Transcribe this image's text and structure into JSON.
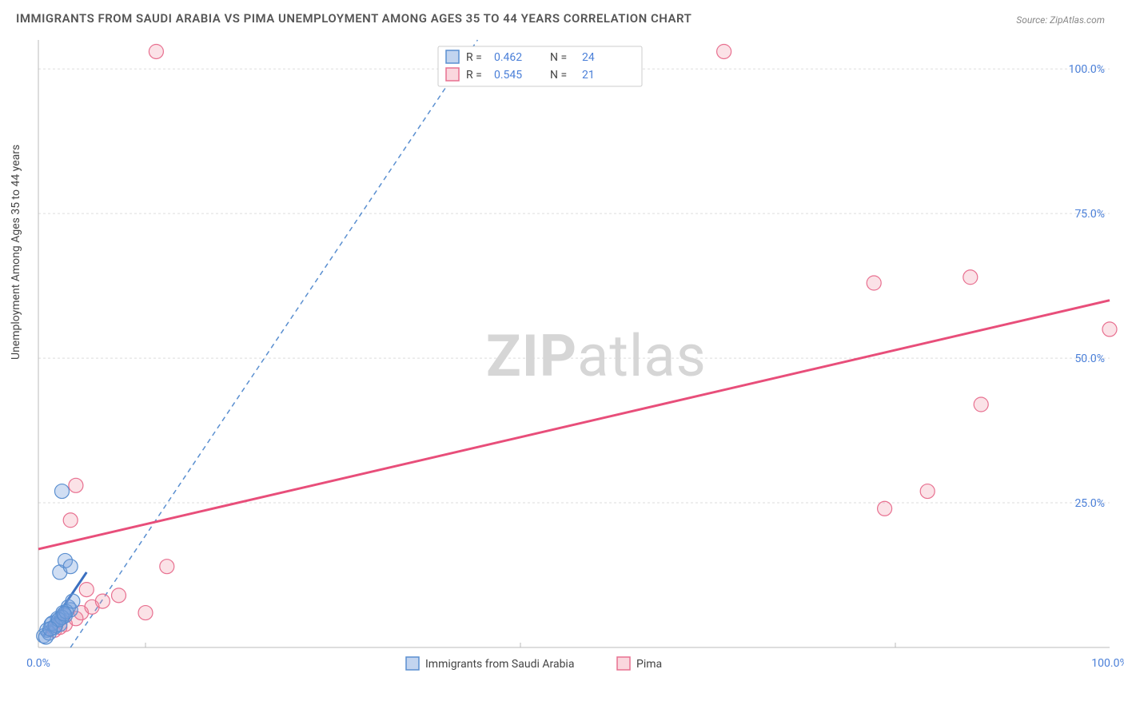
{
  "title": "IMMIGRANTS FROM SAUDI ARABIA VS PIMA UNEMPLOYMENT AMONG AGES 35 TO 44 YEARS CORRELATION CHART",
  "source": "Source: ZipAtlas.com",
  "y_axis_label": "Unemployment Among Ages 35 to 44 years",
  "watermark_bold": "ZIP",
  "watermark_rest": "atlas",
  "chart": {
    "type": "scatter",
    "xlim": [
      0,
      100
    ],
    "ylim": [
      0,
      105
    ],
    "y_ticks": [
      25.0,
      50.0,
      75.0,
      100.0
    ],
    "y_tick_labels": [
      "25.0%",
      "50.0%",
      "75.0%",
      "100.0%"
    ],
    "x_ticks": [
      0.0,
      100.0
    ],
    "x_tick_labels": [
      "0.0%",
      "100.0%"
    ],
    "grid_color": "#dddddd",
    "background_color": "#ffffff",
    "marker_radius": 9,
    "series": [
      {
        "name": "Immigrants from Saudi Arabia",
        "color_fill": "rgba(120,160,220,0.35)",
        "color_stroke": "#5a8fd0",
        "R": "0.462",
        "N": "24",
        "points": [
          [
            0.5,
            2
          ],
          [
            0.8,
            3
          ],
          [
            1.2,
            4
          ],
          [
            1.5,
            3.5
          ],
          [
            1.8,
            5
          ],
          [
            2.0,
            4
          ],
          [
            2.3,
            6
          ],
          [
            2.5,
            5.5
          ],
          [
            1.0,
            2.5
          ],
          [
            1.3,
            4.2
          ],
          [
            2.8,
            7
          ],
          [
            3.0,
            6.5
          ],
          [
            1.6,
            3.8
          ],
          [
            2.2,
            5.2
          ],
          [
            0.7,
            1.8
          ],
          [
            1.9,
            4.8
          ],
          [
            2.6,
            6.2
          ],
          [
            3.2,
            8
          ],
          [
            1.1,
            3.2
          ],
          [
            2.4,
            5.8
          ],
          [
            2.0,
            13
          ],
          [
            2.5,
            15
          ],
          [
            3.0,
            14
          ],
          [
            2.2,
            27
          ]
        ],
        "trend_solid": {
          "x1": 0.5,
          "y1": 2,
          "x2": 4.5,
          "y2": 13
        },
        "trend_dash": {
          "x1": 3,
          "y1": 0,
          "x2": 41,
          "y2": 105
        }
      },
      {
        "name": "Pima",
        "color_fill": "rgba(240,140,160,0.25)",
        "color_stroke": "#e87090",
        "R": "0.545",
        "N": "21",
        "points": [
          [
            1.5,
            3
          ],
          [
            2.5,
            4
          ],
          [
            3.5,
            5
          ],
          [
            4.0,
            6
          ],
          [
            5.0,
            7
          ],
          [
            6.0,
            8
          ],
          [
            7.5,
            9
          ],
          [
            2.0,
            3.5
          ],
          [
            4.5,
            10
          ],
          [
            3.0,
            22
          ],
          [
            3.5,
            28
          ],
          [
            12,
            14
          ],
          [
            10,
            6
          ],
          [
            11,
            103
          ],
          [
            64,
            103
          ],
          [
            78,
            63
          ],
          [
            87,
            64
          ],
          [
            100,
            55
          ],
          [
            88,
            42
          ],
          [
            79,
            24
          ],
          [
            83,
            27
          ]
        ],
        "trend": {
          "x1": 0,
          "y1": 17,
          "x2": 100,
          "y2": 60
        }
      }
    ]
  },
  "legend_top": {
    "rows": [
      {
        "swatch_fill": "rgba(120,160,220,0.45)",
        "swatch_stroke": "#5a8fd0",
        "R_label": "R =",
        "R_val": "0.462",
        "N_label": "N =",
        "N_val": "24"
      },
      {
        "swatch_fill": "rgba(240,140,160,0.35)",
        "swatch_stroke": "#e87090",
        "R_label": "R =",
        "R_val": "0.545",
        "N_label": "N =",
        "N_val": "21"
      }
    ]
  },
  "legend_bottom": [
    {
      "swatch_fill": "rgba(120,160,220,0.45)",
      "swatch_stroke": "#5a8fd0",
      "label": "Immigrants from Saudi Arabia"
    },
    {
      "swatch_fill": "rgba(240,140,160,0.35)",
      "swatch_stroke": "#e87090",
      "label": "Pima"
    }
  ]
}
